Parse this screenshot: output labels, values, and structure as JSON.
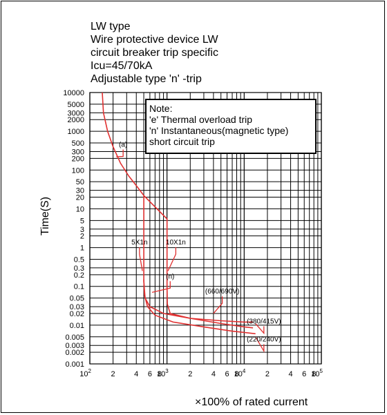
{
  "title_lines": [
    "LW  type",
    "Wire protective device LW",
    "circuit breaker trip specific",
    "Icu=45/70kA",
    "Adjustable type 'n' -trip"
  ],
  "note": {
    "heading": "Note:",
    "lines": [
      "'e' Thermal overload trip",
      "'n' Instantaneous(magnetic type)",
      "short circuit trip"
    ]
  },
  "chart_data": {
    "type": "line",
    "xlabel": "×100% of rated current",
    "ylabel": "Time(S)",
    "x_scale": "log",
    "y_scale": "log",
    "xlim": [
      100,
      100000
    ],
    "ylim": [
      0.001,
      10000
    ],
    "grid": true,
    "y_ticks": [
      "10000",
      "5000",
      "3000",
      "2000",
      "1000",
      "500",
      "300",
      "200",
      "100",
      "50",
      "30",
      "20",
      "10",
      "5",
      "3",
      "2",
      "1",
      "0.5",
      "0.3",
      "0.2",
      "0.1",
      "0.05",
      "0.03",
      "0.02",
      "0.01",
      "0.005",
      "0.003",
      "0.002",
      "0.001"
    ],
    "x_ticks": [
      {
        "v": 100,
        "base": "10",
        "exp": "2"
      },
      {
        "v": 200,
        "base": "2",
        "exp": ""
      },
      {
        "v": 400,
        "base": "4",
        "exp": ""
      },
      {
        "v": 600,
        "base": "6",
        "exp": ""
      },
      {
        "v": 800,
        "base": "8",
        "exp": ""
      },
      {
        "v": 1000,
        "base": "10",
        "exp": "3"
      },
      {
        "v": 2000,
        "base": "2",
        "exp": ""
      },
      {
        "v": 4000,
        "base": "4",
        "exp": ""
      },
      {
        "v": 6000,
        "base": "6",
        "exp": ""
      },
      {
        "v": 8000,
        "base": "8",
        "exp": ""
      },
      {
        "v": 10000,
        "base": "10",
        "exp": "4"
      },
      {
        "v": 20000,
        "base": "2",
        "exp": ""
      },
      {
        "v": 40000,
        "base": "4",
        "exp": ""
      },
      {
        "v": 60000,
        "base": "6",
        "exp": ""
      },
      {
        "v": 80000,
        "base": "8",
        "exp": ""
      },
      {
        "v": 100000,
        "base": "10",
        "exp": "5"
      }
    ],
    "series": [
      {
        "name": "(a)",
        "color": "#e03030",
        "points": [
          [
            145,
            10000
          ],
          [
            150,
            3000
          ],
          [
            170,
            1000
          ],
          [
            200,
            400
          ],
          [
            250,
            150
          ],
          [
            320,
            70
          ],
          [
            420,
            35
          ],
          [
            500,
            22
          ],
          [
            1000,
            5.5
          ],
          [
            1000,
            0.1
          ],
          [
            1010,
            0.035
          ],
          [
            1100,
            0.02
          ],
          [
            2000,
            0.015
          ],
          [
            5000,
            0.013
          ],
          [
            10000,
            0.012
          ],
          [
            13000,
            0.012
          ]
        ]
      },
      {
        "name": "(380/415V)",
        "color": "#e03030",
        "points": [
          [
            500,
            22
          ],
          [
            500,
            0.13
          ],
          [
            520,
            0.05
          ],
          [
            600,
            0.03
          ],
          [
            900,
            0.02
          ],
          [
            2000,
            0.015
          ],
          [
            5000,
            0.011
          ],
          [
            10000,
            0.009
          ],
          [
            13000,
            0.0085
          ]
        ]
      },
      {
        "name": "(220/240V)",
        "color": "#e03030",
        "points": [
          [
            500,
            0.15
          ],
          [
            510,
            0.06
          ],
          [
            560,
            0.03
          ],
          [
            700,
            0.018
          ],
          [
            1200,
            0.012
          ],
          [
            3000,
            0.009
          ],
          [
            7000,
            0.007
          ],
          [
            10000,
            0.0065
          ],
          [
            14000,
            0.006
          ]
        ]
      }
    ],
    "annotations": [
      {
        "text": "(a)",
        "x": 270,
        "y": 400,
        "tip": [
          220,
          220
        ]
      },
      {
        "text": "5X1n",
        "x": 440,
        "y": 1.2,
        "tip": [
          480,
          0.25
        ]
      },
      {
        "text": "10X1n",
        "x": 1300,
        "y": 1.2,
        "tip": [
          1030,
          0.25
        ]
      },
      {
        "text": "(n)",
        "x": 1100,
        "y": 0.16,
        "tip": [
          640,
          0.07
        ]
      },
      {
        "text": "(660/690V)",
        "x": 5200,
        "y": 0.065,
        "tip": [
          4000,
          0.02
        ]
      },
      {
        "text": "(380/415V)",
        "x": 18000,
        "y": 0.011,
        "tip": [
          14000,
          0.011
        ]
      },
      {
        "text": "(220/240V)",
        "x": 18000,
        "y": 0.0038,
        "tip": [
          14000,
          0.005
        ]
      }
    ]
  }
}
